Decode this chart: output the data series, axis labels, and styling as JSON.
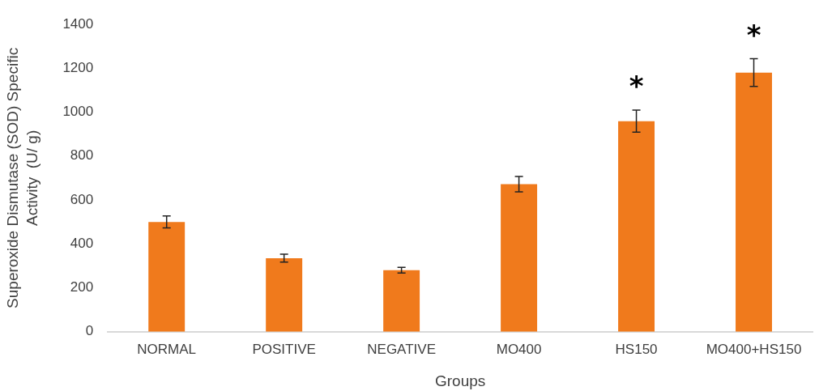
{
  "chart_data": {
    "type": "bar",
    "xlabel": "Groups",
    "ylabel": "Superoxide Dismutase (SOD) Specific\nActivity  (U/ g)",
    "categories": [
      "NORMAL",
      "POSITIVE",
      "NEGATIVE",
      "MO400",
      "HS150",
      "MO400+HS150"
    ],
    "values": [
      500,
      335,
      280,
      672,
      959,
      1180
    ],
    "errors": [
      27,
      18,
      13,
      35,
      50,
      63
    ],
    "color": "#f07a1c",
    "ylim": [
      0,
      1400
    ],
    "yticks": [
      0,
      200,
      400,
      600,
      800,
      1000,
      1200,
      1400
    ],
    "grid": false,
    "legend": false,
    "annotations": [
      {
        "text": "*",
        "x": "HS150",
        "y": 1009
      },
      {
        "text": "*",
        "x": "MO400+HS150",
        "y": 1243
      }
    ]
  }
}
